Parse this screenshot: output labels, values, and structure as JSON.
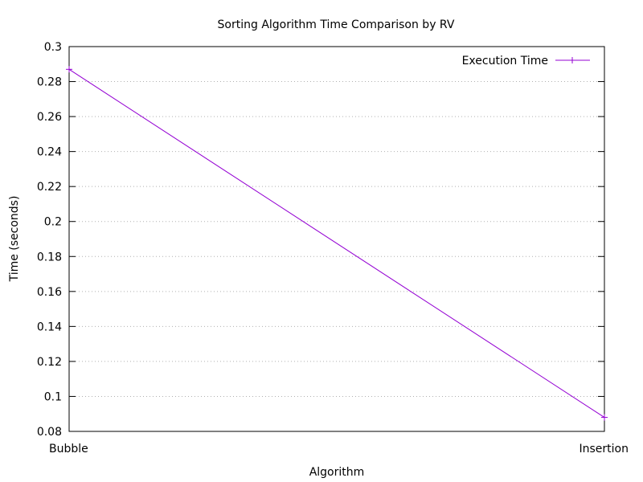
{
  "chart_data": {
    "type": "line",
    "title": "Sorting Algorithm Time Comparison by RV",
    "xlabel": "Algorithm",
    "ylabel": "Time (seconds)",
    "categories": [
      "Bubble",
      "Insertion"
    ],
    "series": [
      {
        "name": "Execution Time",
        "values": [
          0.287,
          0.088
        ],
        "color": "#9400d3"
      }
    ],
    "ylim": [
      0.08,
      0.3
    ],
    "yticks": [
      0.08,
      0.1,
      0.12,
      0.14,
      0.16,
      0.18,
      0.2,
      0.22,
      0.24,
      0.26,
      0.28,
      0.3
    ],
    "grid": true,
    "legend_position": "top-right"
  }
}
